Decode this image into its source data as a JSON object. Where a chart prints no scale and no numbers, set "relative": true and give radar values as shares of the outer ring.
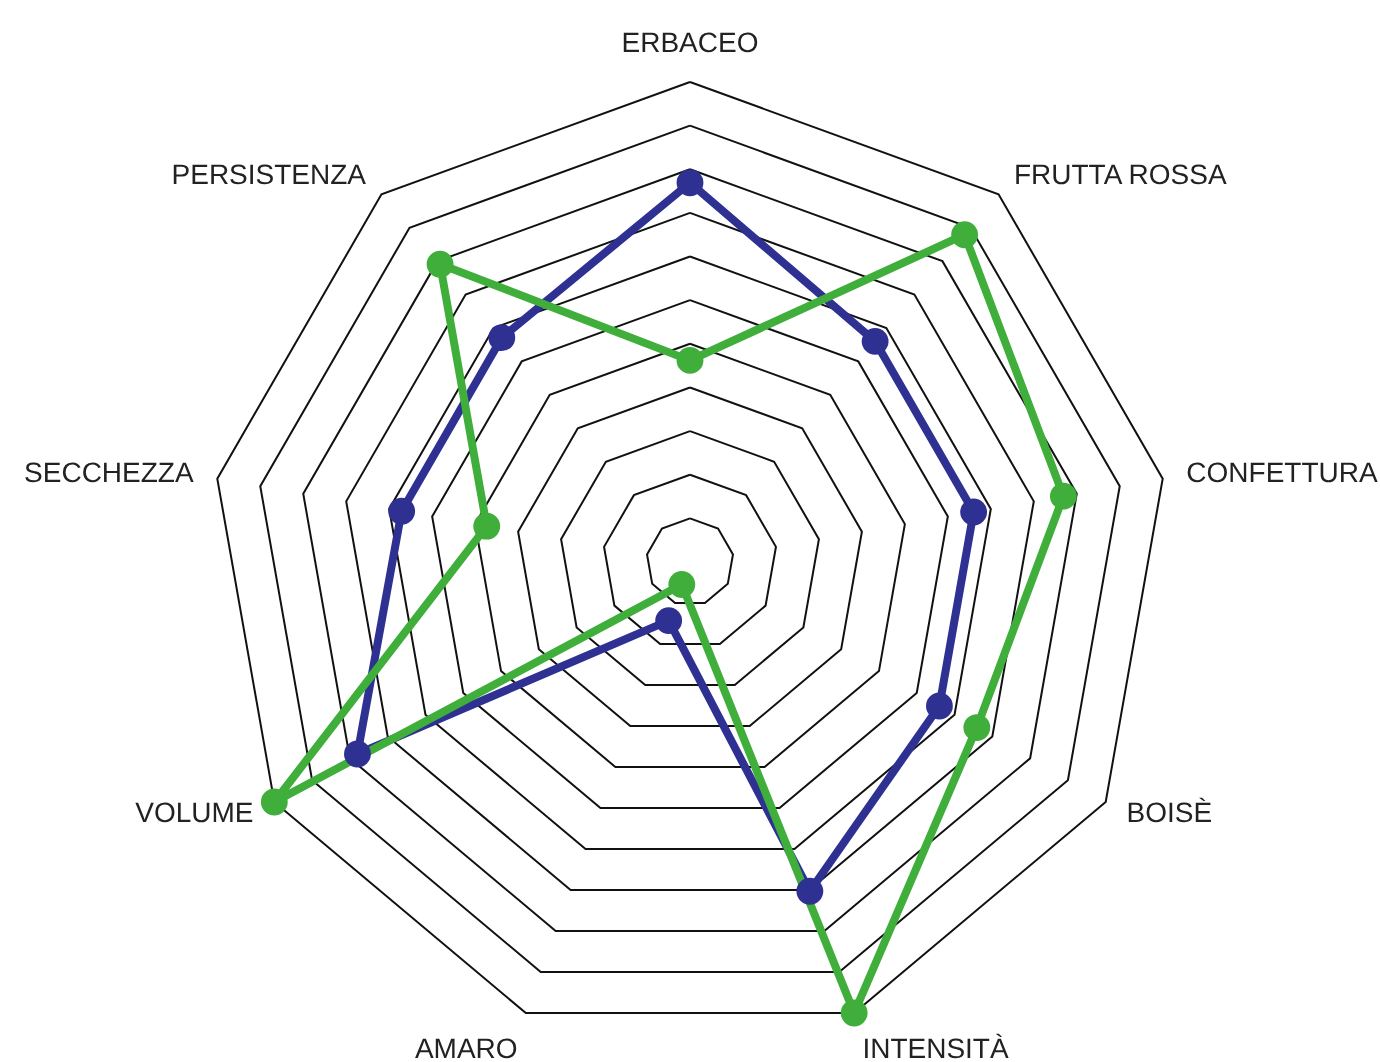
{
  "chart_data": {
    "type": "radar",
    "relative": true,
    "grid": true,
    "marker": "circle",
    "categories": [
      "ERBACEO",
      "FRUTTA ROSSA",
      "CONFETTURA",
      "BOISÈ",
      "INTENSITÀ",
      "AMARO",
      "VOLUME",
      "SECCHEZZA",
      "PERSISTENZA"
    ],
    "series": [
      {
        "color": "#2e3192",
        "values": [
          0.79,
          0.6,
          0.6,
          0.6,
          0.73,
          0.13,
          0.8,
          0.61,
          0.61
        ]
      },
      {
        "color": "#3fae3a",
        "values": [
          0.42,
          0.89,
          0.79,
          0.69,
          1.0,
          0.05,
          1.0,
          0.43,
          0.81
        ]
      }
    ]
  }
}
